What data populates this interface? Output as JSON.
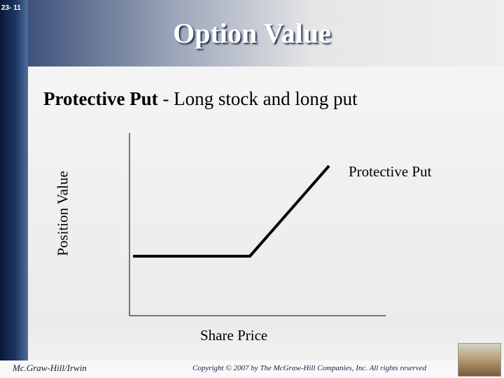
{
  "slide_number": "23- 11",
  "title": "Option Value",
  "subtitle": {
    "strong": "Protective Put",
    "rest": " - Long stock and long put"
  },
  "diagram": {
    "y_label": "Position Value",
    "x_label": "Share Price",
    "line_label": "Protective Put"
  },
  "footer": {
    "publisher": "Mc.Graw-Hill/Irwin",
    "copyright": "Copyright © 2007 by The McGraw-Hill Companies, Inc. All rights reserved"
  }
}
